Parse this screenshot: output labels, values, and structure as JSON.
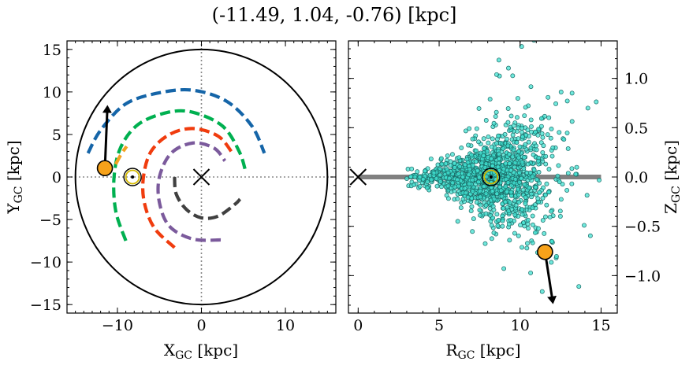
{
  "figure_title": "(-11.49, 1.04, -0.76) [kpc]",
  "chart_data": [
    {
      "type": "scatter",
      "panel": "left",
      "xlabel": "X",
      "xlabel_sub": "GC",
      "xlabel_unit": " [kpc]",
      "ylabel": "Y",
      "ylabel_sub": "GC",
      "ylabel_unit": " [kpc]",
      "xlim": [
        -16,
        16
      ],
      "ylim": [
        -16,
        16
      ],
      "x_ticks": [
        -10,
        0,
        10
      ],
      "y_ticks": [
        -15,
        -10,
        -5,
        0,
        5,
        10,
        15
      ],
      "x_tick_labels": [
        "−10",
        "0",
        "10"
      ],
      "y_tick_labels": [
        "−15",
        "−10",
        "−5",
        "0",
        "5",
        "10",
        "15"
      ],
      "boundary_radius": 15,
      "galactic_center": [
        0,
        0
      ],
      "sun": [
        -8.2,
        0
      ],
      "object": [
        -11.49,
        1.04
      ],
      "object_velocity_arrow_end": [
        -11.2,
        8.0
      ],
      "spiral_arms": [
        {
          "color": "#1565a8",
          "points": [
            [
              -13.5,
              2.8
            ],
            [
              -12,
              5.5
            ],
            [
              -9,
              8.6
            ],
            [
              -5,
              9.9
            ],
            [
              -1,
              10.2
            ],
            [
              3,
              8.9
            ],
            [
              6,
              6
            ],
            [
              7.5,
              2.8
            ]
          ]
        },
        {
          "color": "#00b050",
          "points": [
            [
              -9,
              -7.5
            ],
            [
              -10.2,
              -4
            ],
            [
              -10.4,
              0
            ],
            [
              -9.6,
              3.5
            ],
            [
              -7.5,
              6.2
            ],
            [
              -4,
              7.6
            ],
            [
              -1,
              7.6
            ],
            [
              2.5,
              6
            ],
            [
              4.5,
              3
            ],
            [
              5.3,
              0.5
            ]
          ]
        },
        {
          "color": "#f4a321",
          "points": [
            [
              -10.2,
              1.5
            ],
            [
              -9.6,
              2.6
            ],
            [
              -8.9,
              3.6
            ]
          ]
        },
        {
          "color": "#f03c0e",
          "points": [
            [
              -3.2,
              -8.3
            ],
            [
              -5.6,
              -6
            ],
            [
              -6.8,
              -3
            ],
            [
              -6.9,
              0
            ],
            [
              -6,
              3
            ],
            [
              -3.8,
              5
            ],
            [
              -1,
              5.7
            ],
            [
              2,
              4.8
            ],
            [
              3.7,
              2.8
            ]
          ]
        },
        {
          "color": "#7b5a9c",
          "points": [
            [
              2.3,
              -7.4
            ],
            [
              -1,
              -7.3
            ],
            [
              -3.8,
              -5.8
            ],
            [
              -5,
              -3
            ],
            [
              -5,
              0
            ],
            [
              -3.6,
              2.8
            ],
            [
              -1,
              4
            ],
            [
              1.5,
              3.4
            ],
            [
              2.8,
              1.9
            ]
          ]
        },
        {
          "color": "#404040",
          "points": [
            [
              -3.2,
              0
            ],
            [
              -3,
              -2
            ],
            [
              -1.8,
              -3.8
            ],
            [
              0,
              -4.8
            ],
            [
              2,
              -4.6
            ],
            [
              4,
              -3.2
            ],
            [
              4.6,
              -2.6
            ]
          ]
        }
      ]
    },
    {
      "type": "scatter",
      "panel": "right",
      "xlabel": "R",
      "xlabel_sub": "GC",
      "xlabel_unit": " [kpc]",
      "ylabel": "Z",
      "ylabel_sub": "GC",
      "ylabel_unit": " [kpc]",
      "xlim": [
        -0.6,
        16
      ],
      "ylim": [
        -1.38,
        1.38
      ],
      "x_ticks": [
        0,
        5,
        10,
        15
      ],
      "y_ticks": [
        -1.0,
        -0.5,
        0.0,
        0.5,
        1.0
      ],
      "x_tick_labels": [
        "0",
        "5",
        "10",
        "15"
      ],
      "y_tick_labels": [
        "−1.0",
        "−0.5",
        "0.0",
        "0.5",
        "1.0"
      ],
      "disk_plane": {
        "x": [
          0,
          15
        ],
        "z": 0
      },
      "galactic_center": [
        0,
        0
      ],
      "sun": [
        8.2,
        0
      ],
      "object": [
        11.54,
        -0.76
      ],
      "object_velocity_arrow_end": [
        12.0,
        -1.25
      ],
      "stars_point_color": "#40e0d0",
      "stars_edge_color": "#1a6a66",
      "stars_count": 1400
    }
  ]
}
